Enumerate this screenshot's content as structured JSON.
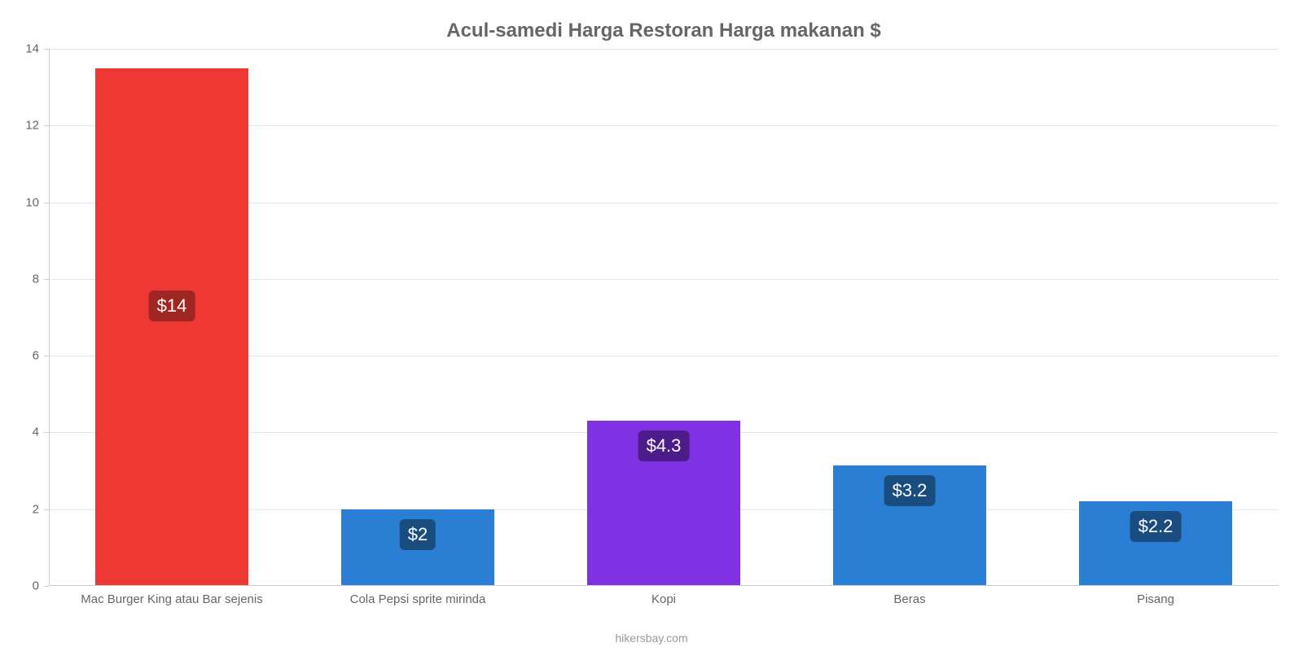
{
  "chart": {
    "type": "bar",
    "title": "Acul-samedi Harga Restoran Harga makanan $",
    "title_color": "#666666",
    "title_fontsize": 24,
    "background_color": "#ffffff",
    "grid_color": "#e6e6e6",
    "axis_line_color": "#cccccc",
    "tick_label_color": "#666666",
    "tick_label_fontsize": 15,
    "credits": "hikersbay.com",
    "credits_color": "#999999",
    "y": {
      "min": 0,
      "max": 14,
      "tick_step": 2,
      "ticks": [
        0,
        2,
        4,
        6,
        8,
        10,
        12,
        14
      ]
    },
    "bar_width_ratio": 0.62,
    "categories": [
      "Mac Burger King atau Bar sejenis",
      "Cola Pepsi sprite mirinda",
      "Kopi",
      "Beras",
      "Pisang"
    ],
    "values": [
      13.5,
      2.0,
      4.3,
      3.15,
      2.2
    ],
    "display_labels": [
      "$14",
      "$2",
      "$4.3",
      "$3.2",
      "$2.2"
    ],
    "bar_colors": [
      "#ed3833",
      "#2a7fd4",
      "#8131e4",
      "#2a7fd4",
      "#2a7fd4"
    ],
    "label_bg_colors": [
      "#9f2622",
      "#194d80",
      "#4c1c8a",
      "#194d80",
      "#194d80"
    ],
    "label_text_color": "#ffffff",
    "label_fontsize": 22
  }
}
